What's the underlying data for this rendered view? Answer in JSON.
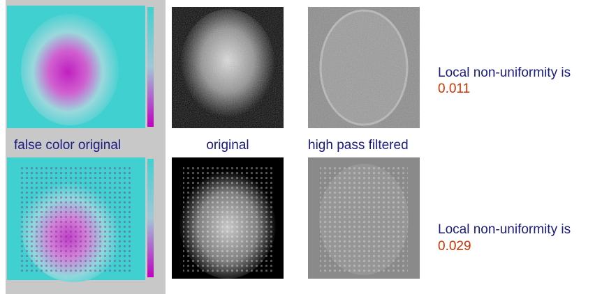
{
  "captions": [
    "false color original",
    "original",
    "high pass filtered"
  ],
  "rows": [
    {
      "label": "Local non-uniformity is",
      "value": "0.011"
    },
    {
      "label": "Local non-uniformity is",
      "value": "0.029"
    }
  ]
}
